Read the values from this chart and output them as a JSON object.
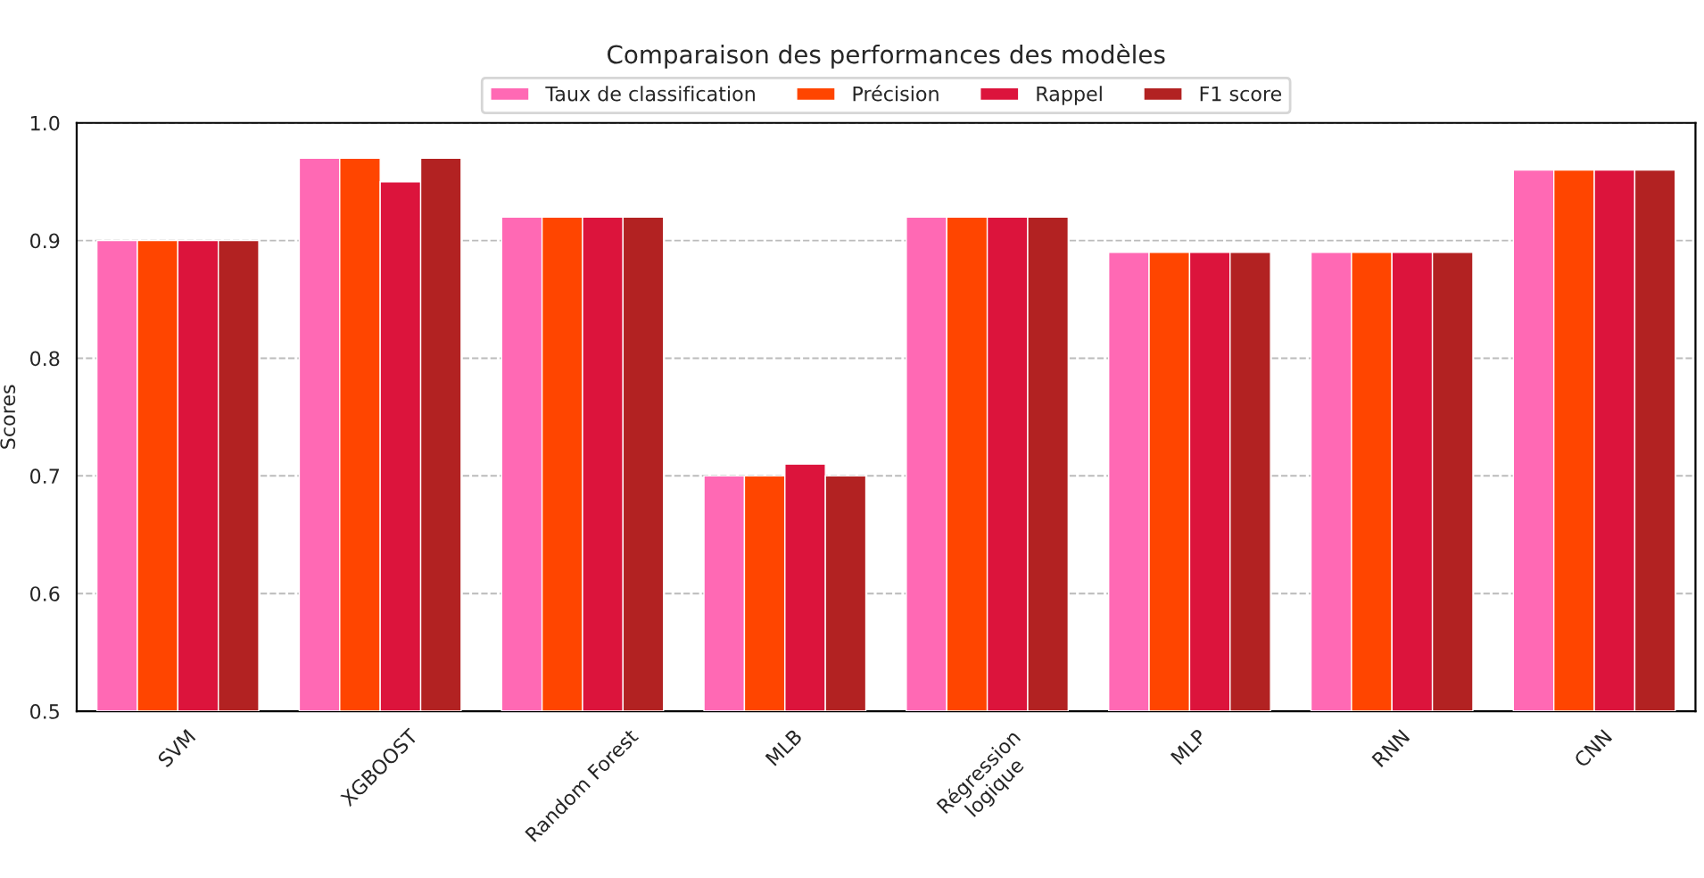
{
  "chart_data": {
    "type": "bar",
    "title": "Comparaison des performances des modèles",
    "ylabel": "Scores",
    "categories": [
      "SVM",
      "XGBOOST",
      "Random Forest",
      "MLB",
      "Régression\nlogique",
      "MLP",
      "RNN",
      "CNN"
    ],
    "series": [
      {
        "name": "Taux de classification",
        "color": "#ff69b4",
        "values": [
          0.9,
          0.97,
          0.92,
          0.7,
          0.92,
          0.89,
          0.89,
          0.96
        ]
      },
      {
        "name": "Précision",
        "color": "#ff4500",
        "values": [
          0.9,
          0.97,
          0.92,
          0.7,
          0.92,
          0.89,
          0.89,
          0.96
        ]
      },
      {
        "name": "Rappel",
        "color": "#dc143c",
        "values": [
          0.9,
          0.95,
          0.92,
          0.71,
          0.92,
          0.89,
          0.89,
          0.96
        ]
      },
      {
        "name": "F1 score",
        "color": "#b22222",
        "values": [
          0.9,
          0.97,
          0.92,
          0.7,
          0.92,
          0.89,
          0.89,
          0.96
        ]
      }
    ],
    "ylim": [
      0.5,
      1.0
    ],
    "yticks": [
      0.5,
      0.6,
      0.7,
      0.8,
      0.9,
      {
        "value": 1.0,
        "label": "1.0"
      }
    ],
    "grid": "y",
    "legend": "top"
  }
}
